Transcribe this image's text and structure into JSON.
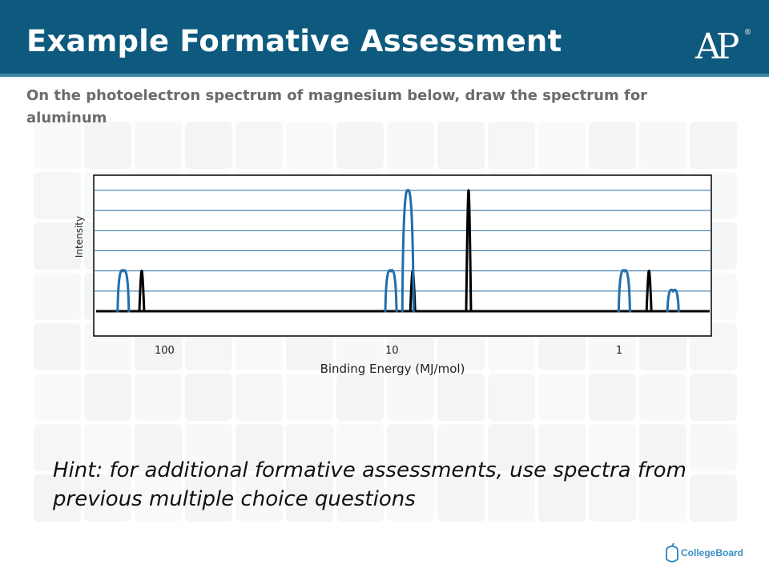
{
  "slide": {
    "title": "Example Formative Assessment",
    "subtitle": "On the photoelectron spectrum of magnesium below, draw the spectrum for aluminum",
    "hint": "Hint: for additional formative assessments, use spectra from previous multiple choice questions",
    "logo_text": "AP",
    "footer_brand": "CollegeBoard"
  },
  "colors": {
    "header": "#0e5a7e",
    "magnesium": "#000000",
    "aluminum": "#1f6fae",
    "gridline": "#2e6e9e"
  },
  "chart_data": {
    "type": "line",
    "xlabel": "Binding Energy (MJ/mol)",
    "ylabel": "Intensity",
    "x_scale": "log",
    "x_reversed": true,
    "xlim": [
      200,
      0.4
    ],
    "ylim": [
      0,
      6
    ],
    "x_ticks": [
      {
        "value": 100,
        "label": "100"
      },
      {
        "value": 10,
        "label": "10"
      },
      {
        "value": 1,
        "label": "1"
      }
    ],
    "grid": true,
    "series": [
      {
        "color": "#000000",
        "peaks": [
          {
            "x": 126,
            "y": 2
          },
          {
            "x": 8.1,
            "y": 2
          },
          {
            "x": 4.6,
            "y": 6
          },
          {
            "x": 0.74,
            "y": 2
          }
        ]
      },
      {
        "color": "#1f6fae",
        "peaks": [
          {
            "x": 152,
            "y": 2
          },
          {
            "x": 10.1,
            "y": 2
          },
          {
            "x": 8.5,
            "y": 6
          },
          {
            "x": 0.95,
            "y": 2
          },
          {
            "x": 0.58,
            "y": 1
          }
        ]
      }
    ]
  }
}
